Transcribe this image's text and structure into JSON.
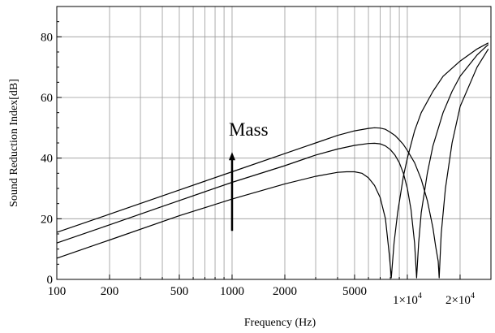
{
  "chart_data": {
    "type": "line",
    "title": "",
    "xlabel": "Frequency (Hz)",
    "ylabel": "Sound Reduction Index[dB]",
    "xscale": "log",
    "xlim": [
      100,
      30000
    ],
    "ylim": [
      0,
      90
    ],
    "grid": true,
    "x_ticks": [
      {
        "value": 100,
        "label": "100"
      },
      {
        "value": 200,
        "label": "200"
      },
      {
        "value": 500,
        "label": "500"
      },
      {
        "value": 1000,
        "label": "1000"
      },
      {
        "value": 2000,
        "label": "2000"
      },
      {
        "value": 5000,
        "label": "5000"
      },
      {
        "value": 10000,
        "label": "1×10",
        "sup": "4"
      },
      {
        "value": 20000,
        "label": "2×10",
        "sup": "4"
      }
    ],
    "x_grid": [
      100,
      200,
      300,
      400,
      500,
      600,
      700,
      800,
      900,
      1000,
      2000,
      3000,
      4000,
      5000,
      6000,
      7000,
      8000,
      9000,
      10000,
      20000,
      30000
    ],
    "y_ticks": [
      0,
      20,
      40,
      60,
      80
    ],
    "series": [
      {
        "x": [
          100,
          200,
          500,
          1000,
          2000,
          3000,
          4000,
          5000,
          6000,
          6500,
          7000,
          7500,
          8000,
          8500,
          9000,
          9500,
          10000,
          11000,
          12000,
          13000,
          14000,
          14500,
          15000,
          15200,
          15600,
          16500,
          18000,
          20000,
          25000,
          29000
        ],
        "y": [
          15.5,
          21.5,
          29.5,
          35.5,
          41.5,
          45,
          47.5,
          49,
          49.8,
          50,
          49.9,
          49.5,
          48.5,
          47.5,
          46,
          44.5,
          42.5,
          38.5,
          33,
          26,
          17,
          11,
          6,
          0.5,
          15,
          30,
          45,
          57,
          70,
          76
        ]
      },
      {
        "x": [
          100,
          200,
          500,
          1000,
          2000,
          3000,
          4000,
          5000,
          6000,
          6500,
          7000,
          7500,
          8000,
          8500,
          9000,
          9500,
          10000,
          10500,
          11000,
          11300,
          11600,
          12000,
          13000,
          14000,
          16000,
          18000,
          20000,
          25000,
          29000
        ],
        "y": [
          12,
          18,
          26,
          32,
          37.5,
          41,
          43,
          44.2,
          44.8,
          44.9,
          44.7,
          44,
          42.8,
          41,
          38.5,
          35,
          30,
          23,
          12,
          0.5,
          12,
          22,
          35,
          44,
          55,
          62,
          67,
          74,
          77.5
        ]
      },
      {
        "x": [
          100,
          200,
          500,
          1000,
          2000,
          3000,
          4000,
          4500,
          5000,
          5500,
          6000,
          6500,
          7000,
          7500,
          7900,
          8100,
          8400,
          8800,
          9500,
          10000,
          11000,
          12000,
          14000,
          16000,
          20000,
          25000,
          29000
        ],
        "y": [
          7,
          13,
          21,
          26.5,
          31.5,
          34,
          35.3,
          35.5,
          35.5,
          35,
          33.5,
          31,
          27,
          20,
          8,
          0.5,
          12,
          22,
          34,
          40,
          49,
          55,
          62,
          67,
          72,
          76,
          78
        ]
      }
    ],
    "annotation": {
      "text": "Mass",
      "arrow_from": [
        1000,
        16
      ],
      "arrow_to": [
        1000,
        42
      ]
    }
  }
}
